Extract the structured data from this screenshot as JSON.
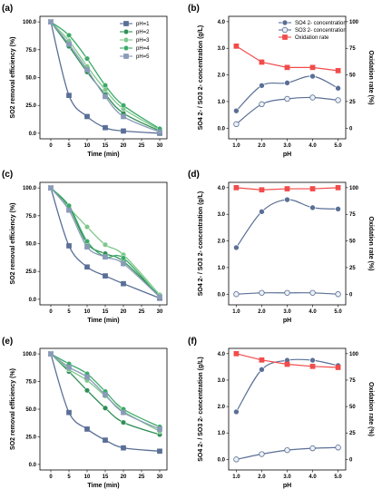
{
  "chart_data": [
    {
      "id": "a",
      "type": "line",
      "panel_label": "(a)",
      "xlabel": "Time (min)",
      "ylabel": "SO2 removal efficiency (%)",
      "x_ticks": [
        0,
        5,
        10,
        15,
        20,
        25,
        30
      ],
      "y_ticks": [
        "0.0",
        "25.0",
        "50.0",
        "75.0",
        "100.0"
      ],
      "xlim": [
        -3,
        32
      ],
      "ylim": [
        -5,
        105
      ],
      "legend_position": "top-right",
      "x": [
        0,
        5,
        10,
        15,
        20,
        30
      ],
      "series": [
        {
          "name": "pH=1",
          "color": "#5a6f96",
          "marker": "square",
          "values": [
            100,
            34,
            15,
            5,
            2,
            0
          ]
        },
        {
          "name": "pH=2",
          "color": "#2f8f56",
          "marker": "circle",
          "values": [
            100,
            78,
            55,
            35,
            18,
            2
          ]
        },
        {
          "name": "pH=3",
          "color": "#7dc88a",
          "marker": "circle",
          "values": [
            100,
            83,
            60,
            39,
            22,
            3
          ]
        },
        {
          "name": "pH=4",
          "color": "#3daa6a",
          "marker": "circle",
          "values": [
            100,
            88,
            67,
            43,
            25,
            4
          ]
        },
        {
          "name": "pH=5",
          "color": "#8a9bb8",
          "marker": "square",
          "values": [
            100,
            80,
            57,
            33,
            15,
            1
          ]
        }
      ]
    },
    {
      "id": "b",
      "type": "line",
      "panel_label": "(b)",
      "xlabel": "pH",
      "ylabel_left": "SO4 2- / SO3 2- concentration (g/L)",
      "ylabel_right": "Oxidation rate (%)",
      "x_ticks": [
        "1.0",
        "2.0",
        "3.0",
        "4.0",
        "5.0"
      ],
      "y_ticks_left": [
        "0.0",
        "1.0",
        "2.0",
        "3.0",
        "4.0"
      ],
      "y_ticks_right": [
        "0",
        "25",
        "50",
        "75",
        "100"
      ],
      "xlim": [
        0.7,
        5.3
      ],
      "ylim_left": [
        -0.4,
        4.2
      ],
      "ylim_right": [
        -10,
        105
      ],
      "legend_position": "top-right",
      "x": [
        1,
        2,
        3,
        4,
        5
      ],
      "series": [
        {
          "name": "SO4 2- concentration",
          "axis": "left",
          "color": "#5a6f96",
          "marker": "circle-filled",
          "values": [
            0.65,
            1.6,
            1.7,
            1.95,
            1.5
          ]
        },
        {
          "name": "SO3 2- concentration",
          "axis": "left",
          "color": "#5a6f96",
          "marker": "circle-open",
          "values": [
            0.15,
            0.9,
            1.1,
            1.15,
            1.05
          ]
        },
        {
          "name": "Oxidation rate",
          "axis": "right",
          "color": "#f24b4b",
          "marker": "square",
          "values": [
            77,
            62,
            57,
            57,
            54
          ]
        }
      ]
    },
    {
      "id": "c",
      "type": "line",
      "panel_label": "(c)",
      "xlabel": "Time (min)",
      "ylabel": "SO2 removal efficiency (%)",
      "x_ticks": [
        0,
        5,
        10,
        15,
        20,
        25,
        30
      ],
      "y_ticks": [
        "0.0",
        "25.0",
        "50.0",
        "75.0",
        "100.0"
      ],
      "xlim": [
        -3,
        32
      ],
      "ylim": [
        -5,
        105
      ],
      "x": [
        0,
        5,
        10,
        15,
        20,
        30
      ],
      "series": [
        {
          "name": "pH=1",
          "color": "#5a6f96",
          "marker": "square",
          "values": [
            100,
            48,
            29,
            21,
            14,
            1
          ]
        },
        {
          "name": "pH=2",
          "color": "#2f8f56",
          "marker": "circle",
          "values": [
            100,
            83,
            50,
            41,
            34,
            3
          ]
        },
        {
          "name": "pH=3",
          "color": "#7dc88a",
          "marker": "circle",
          "values": [
            100,
            82,
            65,
            49,
            40,
            4
          ]
        },
        {
          "name": "pH=4",
          "color": "#3daa6a",
          "marker": "circle",
          "values": [
            100,
            84,
            52,
            38,
            37,
            2
          ]
        },
        {
          "name": "pH=5",
          "color": "#8a9bb8",
          "marker": "square",
          "values": [
            100,
            80,
            47,
            38,
            32,
            2
          ]
        }
      ]
    },
    {
      "id": "d",
      "type": "line",
      "panel_label": "(d)",
      "xlabel": "pH",
      "ylabel_left": "SO4 2- / SO3 2- concentration (g/L)",
      "ylabel_right": "Oxidation rate (%)",
      "x_ticks": [
        "1.0",
        "2.0",
        "3.0",
        "4.0",
        "5.0"
      ],
      "y_ticks_left": [
        "0.0",
        "1.0",
        "2.0",
        "3.0",
        "4.0"
      ],
      "y_ticks_right": [
        "0",
        "25",
        "50",
        "75",
        "100"
      ],
      "xlim": [
        0.7,
        5.3
      ],
      "ylim_left": [
        -0.4,
        4.2
      ],
      "ylim_right": [
        -10,
        105
      ],
      "x": [
        1,
        2,
        3,
        4,
        5
      ],
      "series": [
        {
          "name": "SO4 2- concentration",
          "axis": "left",
          "color": "#5a6f96",
          "marker": "circle-filled",
          "values": [
            1.75,
            3.1,
            3.55,
            3.25,
            3.2
          ]
        },
        {
          "name": "SO3 2- concentration",
          "axis": "left",
          "color": "#5a6f96",
          "marker": "circle-open",
          "values": [
            0.0,
            0.05,
            0.05,
            0.05,
            0.0
          ]
        },
        {
          "name": "Oxidation rate",
          "axis": "right",
          "color": "#f24b4b",
          "marker": "square",
          "values": [
            100,
            98,
            99,
            99,
            100
          ]
        }
      ]
    },
    {
      "id": "e",
      "type": "line",
      "panel_label": "(e)",
      "xlabel": "Time (min)",
      "ylabel": "SO2 removal efficiency (%)",
      "x_ticks": [
        0,
        5,
        10,
        15,
        20,
        25,
        30
      ],
      "y_ticks": [
        "0.0",
        "25.0",
        "50.0",
        "75.0",
        "100.0"
      ],
      "xlim": [
        -3,
        32
      ],
      "ylim": [
        -5,
        105
      ],
      "x": [
        0,
        5,
        10,
        15,
        20,
        30
      ],
      "series": [
        {
          "name": "pH=1",
          "color": "#5a6f96",
          "marker": "square",
          "values": [
            100,
            47,
            32,
            22,
            15,
            12
          ]
        },
        {
          "name": "pH=2",
          "color": "#2f8f56",
          "marker": "circle",
          "values": [
            100,
            84,
            67,
            51,
            38,
            27
          ]
        },
        {
          "name": "pH=3",
          "color": "#7dc88a",
          "marker": "circle",
          "values": [
            100,
            86,
            76,
            62,
            48,
            30
          ]
        },
        {
          "name": "pH=4",
          "color": "#3daa6a",
          "marker": "circle",
          "values": [
            100,
            91,
            82,
            66,
            50,
            34
          ]
        },
        {
          "name": "pH=5",
          "color": "#8a9bb8",
          "marker": "square",
          "values": [
            100,
            88,
            79,
            63,
            47,
            32
          ]
        }
      ]
    },
    {
      "id": "f",
      "type": "line",
      "panel_label": "(f)",
      "xlabel": "pH",
      "ylabel_left": "SO4 2- / SO3 2- concentration (g/L)",
      "ylabel_right": "Oxidation rate (%)",
      "x_ticks": [
        "1.0",
        "2.0",
        "3.0",
        "4.0",
        "5.0"
      ],
      "y_ticks_left": [
        "0.0",
        "1.0",
        "2.0",
        "3.0",
        "4.0"
      ],
      "y_ticks_right": [
        "0",
        "25",
        "50",
        "75",
        "100"
      ],
      "xlim": [
        0.7,
        5.3
      ],
      "ylim_left": [
        -0.4,
        4.2
      ],
      "ylim_right": [
        -10,
        105
      ],
      "x": [
        1,
        2,
        3,
        4,
        5
      ],
      "series": [
        {
          "name": "SO4 2- concentration",
          "axis": "left",
          "color": "#5a6f96",
          "marker": "circle-filled",
          "values": [
            1.8,
            3.4,
            3.75,
            3.75,
            3.55
          ]
        },
        {
          "name": "SO3 2- concentration",
          "axis": "left",
          "color": "#5a6f96",
          "marker": "circle-open",
          "values": [
            0.0,
            0.2,
            0.35,
            0.42,
            0.45
          ]
        },
        {
          "name": "Oxidation rate",
          "axis": "right",
          "color": "#f24b4b",
          "marker": "square",
          "values": [
            100,
            94,
            90,
            88,
            87
          ]
        }
      ]
    }
  ]
}
